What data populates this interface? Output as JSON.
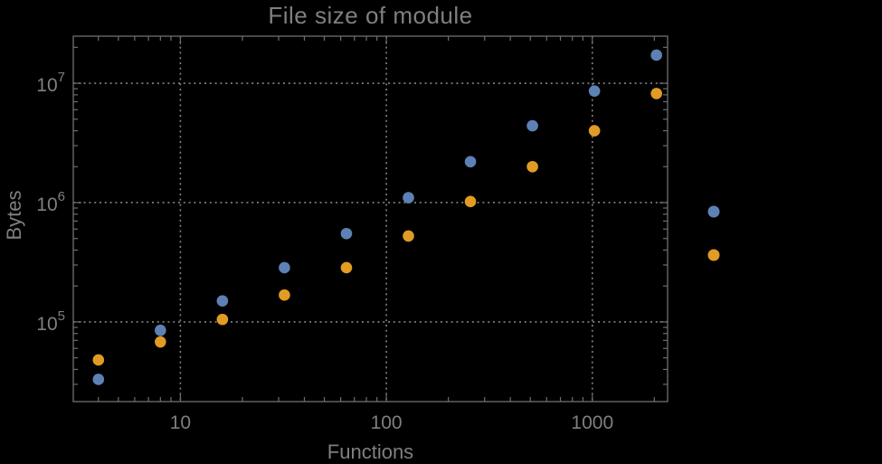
{
  "page": {
    "background": "#000000"
  },
  "colors": {
    "background": "#000000",
    "frame": "#6e6e6e",
    "grid": "#848484",
    "text": "#7f7f7f",
    "series1": "#5E81B5",
    "series2": "#E19C24"
  },
  "chart_data": {
    "type": "scatter",
    "title": "File size of module",
    "xlabel": "Functions",
    "ylabel": "Bytes",
    "x_scale": "log",
    "y_scale": "log",
    "xlim": [
      3.02,
      2320
    ],
    "ylim": [
      21500,
      24800000
    ],
    "grid": true,
    "grid_style": "dotted",
    "x_major_ticks": [
      10,
      100,
      1000
    ],
    "x_major_labels": [
      "10",
      "100",
      "1000"
    ],
    "y_major_ticks": [
      100000,
      1000000,
      10000000
    ],
    "y_major_exponents": [
      5,
      6,
      7
    ],
    "y_tick_base": "10",
    "categories_x": [
      4,
      8,
      16,
      32,
      64,
      128,
      256,
      512,
      1024,
      2048
    ],
    "series": [
      {
        "name": "series-1-blue",
        "color": "#5E81B5",
        "x": [
          4,
          8,
          16,
          32,
          64,
          128,
          256,
          512,
          1024,
          2048
        ],
        "y": [
          33000,
          85000,
          150000,
          285000,
          550000,
          1100000,
          2200000,
          4400000,
          8600000,
          17200000
        ]
      },
      {
        "name": "series-2-orange",
        "color": "#E19C24",
        "x": [
          4,
          8,
          16,
          32,
          64,
          128,
          256,
          512,
          1024,
          2048
        ],
        "y": [
          48000,
          68000,
          105000,
          168000,
          285000,
          525000,
          1020000,
          2000000,
          4000000,
          8200000
        ]
      }
    ],
    "legend": {
      "position": "outside-right",
      "labels_visible": false,
      "markers": [
        {
          "color": "#5E81B5"
        },
        {
          "color": "#E19C24"
        }
      ]
    }
  }
}
